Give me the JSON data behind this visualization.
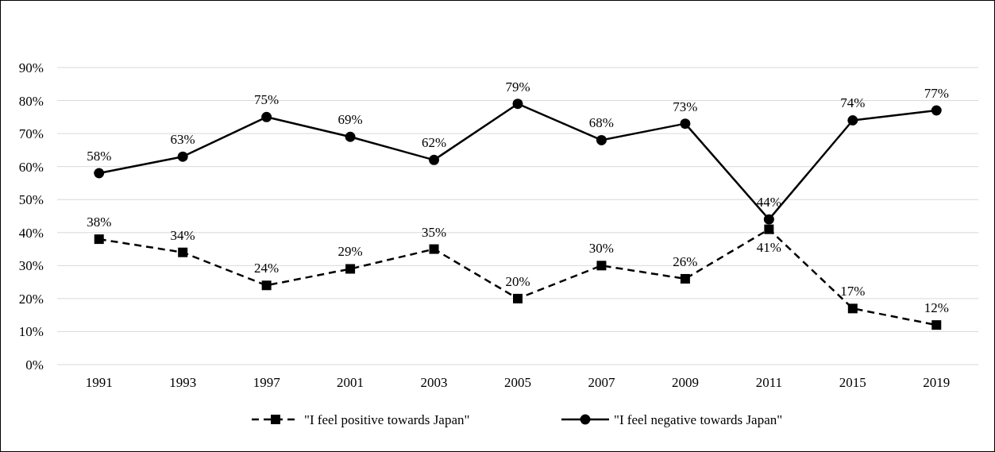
{
  "chart_data": {
    "type": "line",
    "categories": [
      "1991",
      "1993",
      "1997",
      "2001",
      "2003",
      "2005",
      "2007",
      "2009",
      "2011",
      "2015",
      "2019"
    ],
    "series": [
      {
        "name": "\"I feel positive towards Japan\"",
        "color": "#000000",
        "marker": "square",
        "line_style": "dashed",
        "values": [
          38,
          34,
          24,
          29,
          35,
          20,
          30,
          26,
          41,
          17,
          12
        ],
        "value_labels": [
          "38%",
          "34%",
          "24%",
          "29%",
          "35%",
          "20%",
          "30%",
          "26%",
          "41%",
          "17%",
          "12%"
        ]
      },
      {
        "name": "\"I feel negative towards Japan\"",
        "color": "#000000",
        "marker": "circle",
        "line_style": "solid",
        "values": [
          58,
          63,
          75,
          69,
          62,
          79,
          68,
          73,
          44,
          74,
          77
        ],
        "value_labels": [
          "58%",
          "63%",
          "75%",
          "69%",
          "62%",
          "79%",
          "68%",
          "73%",
          "44%",
          "74%",
          "77%"
        ]
      }
    ],
    "ylim": [
      0,
      90
    ],
    "yticks": [
      {
        "value": 0,
        "label": "0%"
      },
      {
        "value": 10,
        "label": "10%"
      },
      {
        "value": 20,
        "label": "20%"
      },
      {
        "value": 30,
        "label": "30%"
      },
      {
        "value": 40,
        "label": "40%"
      },
      {
        "value": 50,
        "label": "50%"
      },
      {
        "value": 60,
        "label": "60%"
      },
      {
        "value": 70,
        "label": "70%"
      },
      {
        "value": 80,
        "label": "80%"
      },
      {
        "value": 90,
        "label": "90%"
      }
    ],
    "grid": "y",
    "legend": "bottom"
  }
}
